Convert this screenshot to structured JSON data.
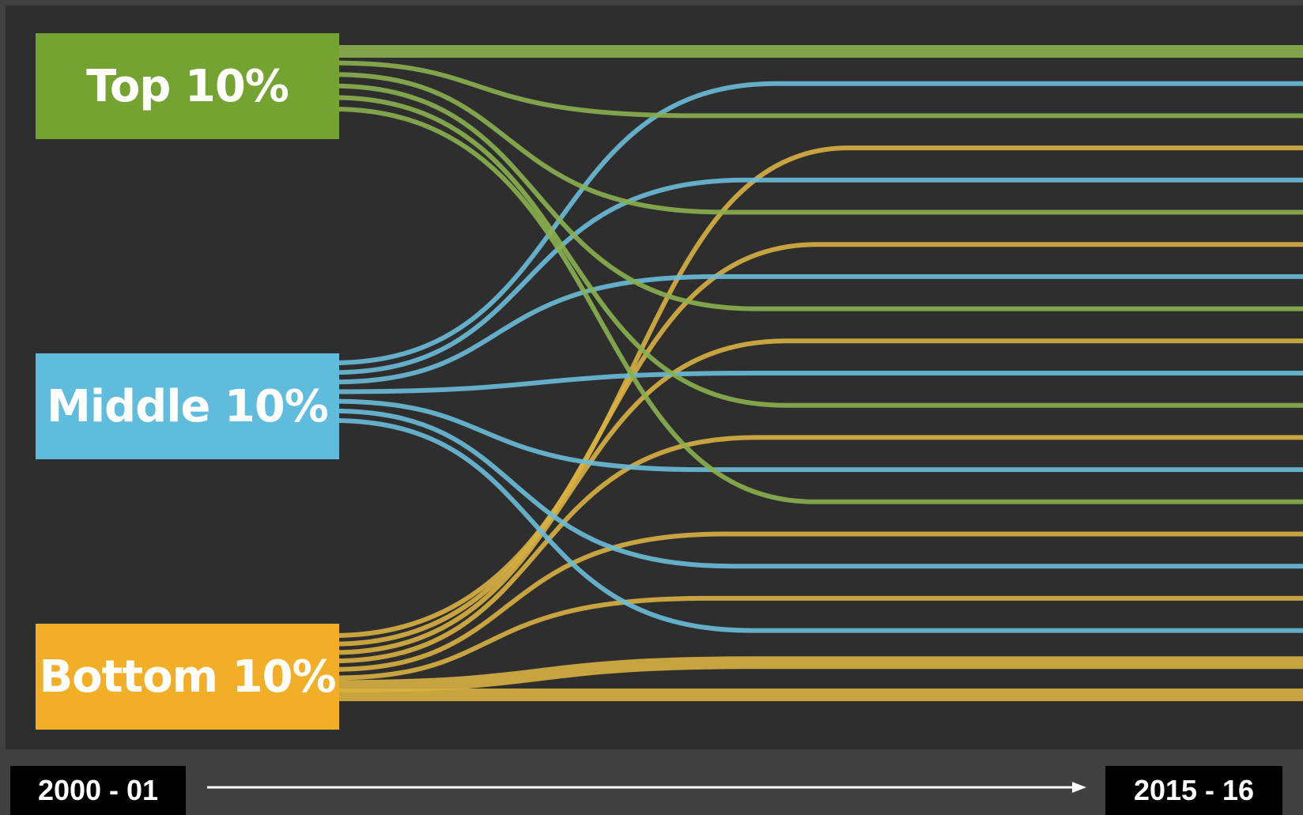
{
  "groups": {
    "top": {
      "label": "Top 10%",
      "color": "#75a331",
      "flow_color": "#8bb04f"
    },
    "middle": {
      "label": "Middle 10%",
      "color": "#5fbcdc",
      "flow_color": "#6cbcd8"
    },
    "bottom": {
      "label": "Bottom 10%",
      "color": "#f2ae26",
      "flow_color": "#d8b142"
    }
  },
  "timeline": {
    "start_label": "2000 - 01",
    "end_label": "2015 - 16"
  }
}
